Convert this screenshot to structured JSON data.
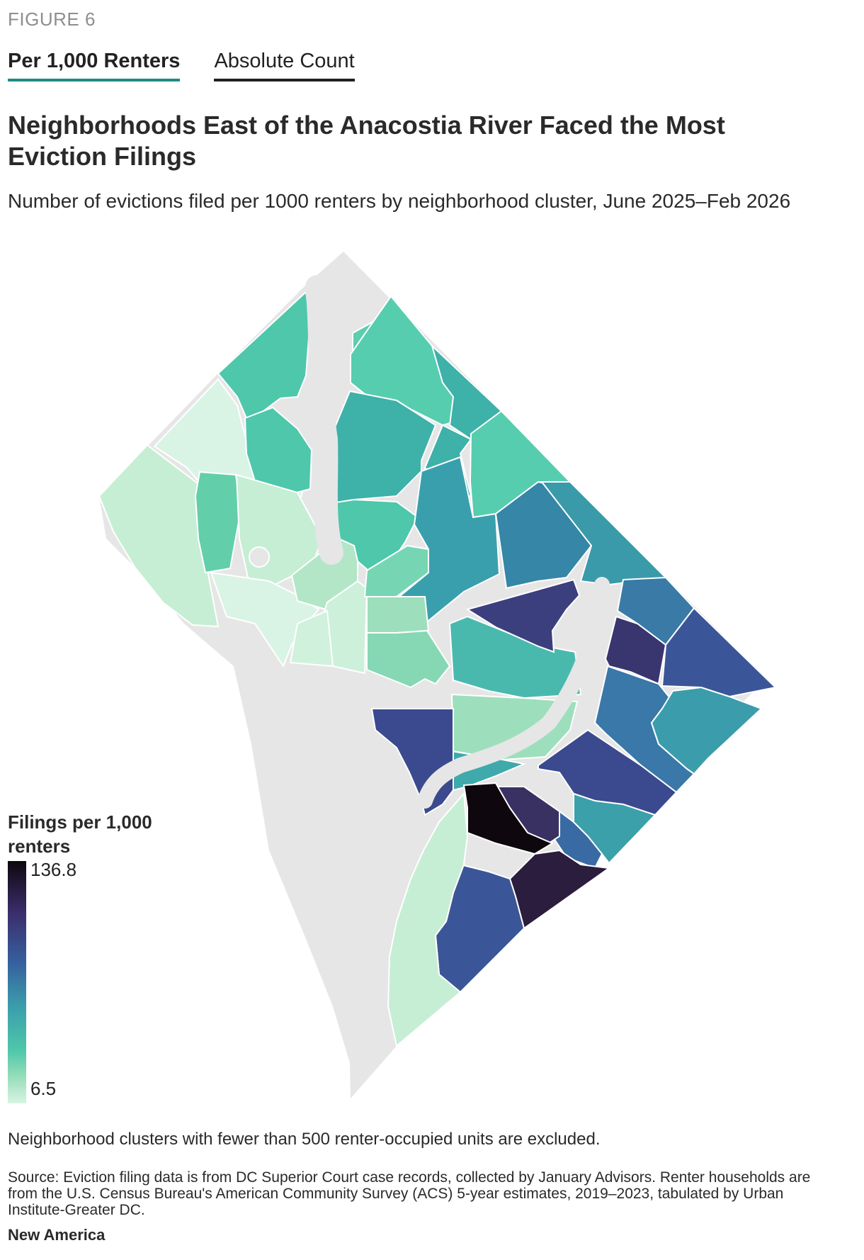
{
  "figure_label": "FIGURE 6",
  "tabs": [
    {
      "label": "Per 1,000 Renters",
      "active": true
    },
    {
      "label": "Absolute Count",
      "active": false
    }
  ],
  "title": "Neighborhoods East of the Anacostia River Faced the Most Eviction Filings",
  "subtitle": "Number of evictions filed per 1000 renters by neighborhood cluster, June 2025–Feb 2026",
  "legend": {
    "title": "Filings per 1,000 renters",
    "max_label": "136.8",
    "min_label": "6.5",
    "max": 136.8,
    "min": 6.5,
    "colors": [
      "#0f070e",
      "#3b2f6e",
      "#36609e",
      "#3b9dac",
      "#4ec7ab",
      "#9ddfbc",
      "#d9f4e4"
    ]
  },
  "colors": {
    "excluded": "#e6e6e6",
    "tab_active_underline": "#1e8a86",
    "text": "#2a2a2a"
  },
  "note": "Neighborhood clusters with fewer than 500 renter-occupied units are excluded.",
  "source": "Source: Eviction filing data is from DC Superior Court case records, collected by January Advisors. Renter households are from the U.S. Census Bureau's American Community Survey (ACS) 5-year estimates, 2019–2023, tabulated by Urban Institute-Greater DC.",
  "credit": "New America"
}
